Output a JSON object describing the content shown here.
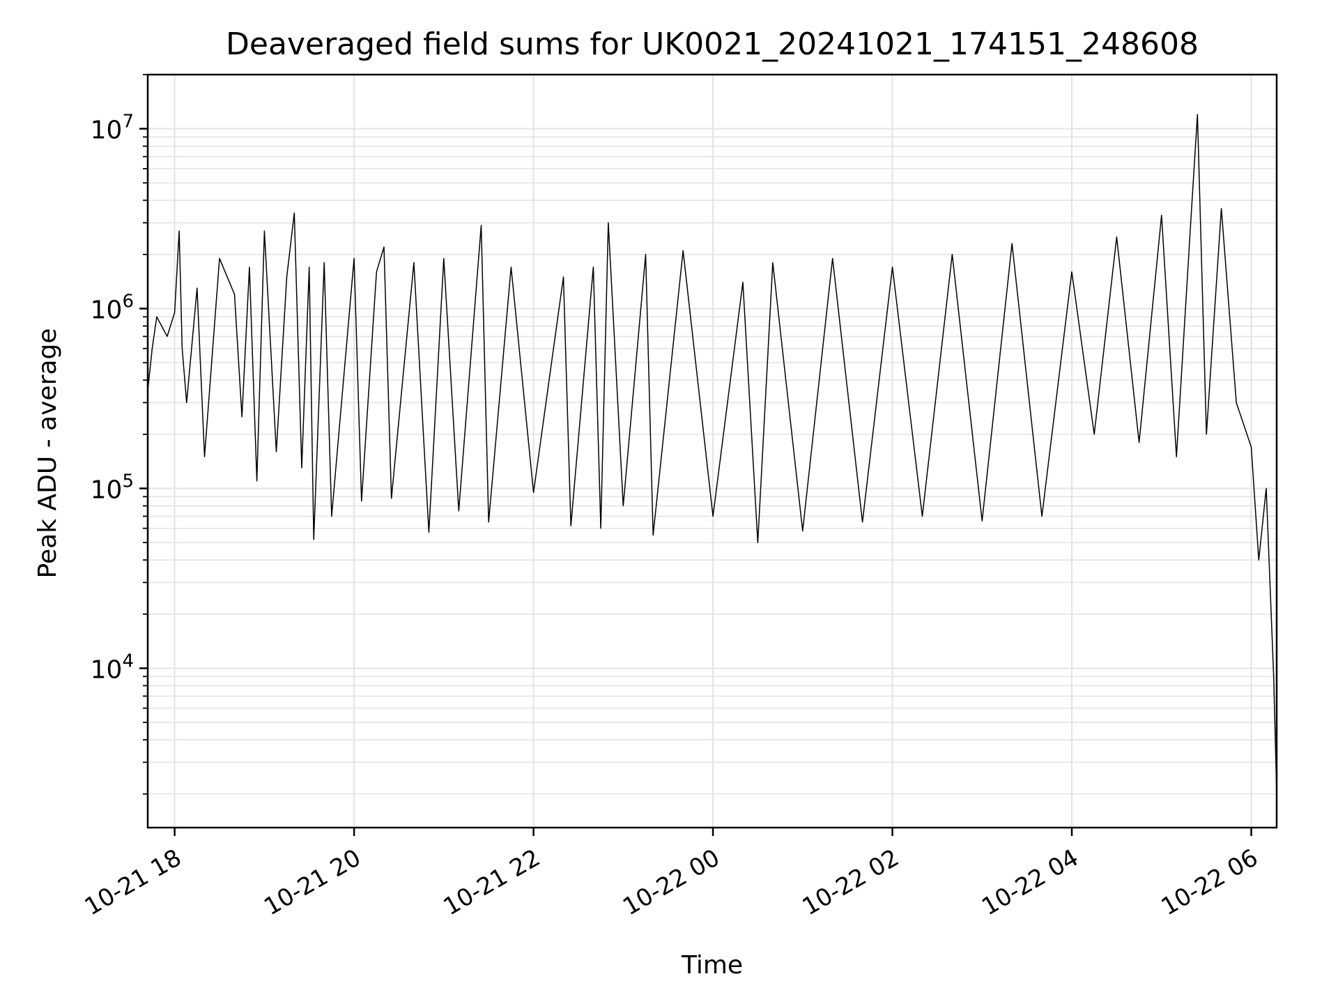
{
  "chart_data": {
    "type": "line",
    "title": "Deaveraged field sums for UK0021_20241021_174151_248608",
    "xlabel": "Time",
    "ylabel": "Peak ADU - average",
    "x_range": [
      "2024-10-21 17:42",
      "2024-10-22 06:17"
    ],
    "y_scale": "log",
    "y_range": [
      1300,
      20000000
    ],
    "x_ticks": [
      {
        "t": "2024-10-21 18:00",
        "label": "10-21 18"
      },
      {
        "t": "2024-10-21 20:00",
        "label": "10-21 20"
      },
      {
        "t": "2024-10-21 22:00",
        "label": "10-21 22"
      },
      {
        "t": "2024-10-22 00:00",
        "label": "10-22 00"
      },
      {
        "t": "2024-10-22 02:00",
        "label": "10-22 02"
      },
      {
        "t": "2024-10-22 04:00",
        "label": "10-22 04"
      },
      {
        "t": "2024-10-22 06:00",
        "label": "10-22 06"
      }
    ],
    "y_ticks": [
      {
        "value": 10000,
        "base": "10",
        "exp": "4"
      },
      {
        "value": 100000,
        "base": "10",
        "exp": "5"
      },
      {
        "value": 1000000,
        "base": "10",
        "exp": "6"
      },
      {
        "value": 10000000,
        "base": "10",
        "exp": "7"
      }
    ],
    "grid": true,
    "grid_color": "#e3e3e3",
    "line_color": "#000000",
    "series": [
      {
        "points": [
          [
            "2024-10-21 17:42",
            350000
          ],
          [
            "2024-10-21 17:45",
            600000
          ],
          [
            "2024-10-21 17:48",
            900000
          ],
          [
            "2024-10-21 17:55",
            700000
          ],
          [
            "2024-10-21 18:00",
            950000
          ],
          [
            "2024-10-21 18:03",
            2700000
          ],
          [
            "2024-10-21 18:05",
            600000
          ],
          [
            "2024-10-21 18:08",
            300000
          ],
          [
            "2024-10-21 18:15",
            1300000
          ],
          [
            "2024-10-21 18:20",
            150000
          ],
          [
            "2024-10-21 18:30",
            1900000
          ],
          [
            "2024-10-21 18:40",
            1200000
          ],
          [
            "2024-10-21 18:45",
            250000
          ],
          [
            "2024-10-21 18:50",
            1700000
          ],
          [
            "2024-10-21 18:55",
            110000
          ],
          [
            "2024-10-21 19:00",
            2700000
          ],
          [
            "2024-10-21 19:08",
            160000
          ],
          [
            "2024-10-21 19:15",
            1500000
          ],
          [
            "2024-10-21 19:20",
            3400000
          ],
          [
            "2024-10-21 19:25",
            130000
          ],
          [
            "2024-10-21 19:30",
            1700000
          ],
          [
            "2024-10-21 19:33",
            52000
          ],
          [
            "2024-10-21 19:40",
            1800000
          ],
          [
            "2024-10-21 19:45",
            70000
          ],
          [
            "2024-10-21 20:00",
            1900000
          ],
          [
            "2024-10-21 20:05",
            85000
          ],
          [
            "2024-10-21 20:15",
            1600000
          ],
          [
            "2024-10-21 20:20",
            2200000
          ],
          [
            "2024-10-21 20:25",
            88000
          ],
          [
            "2024-10-21 20:40",
            1800000
          ],
          [
            "2024-10-21 20:50",
            57000
          ],
          [
            "2024-10-21 21:00",
            1900000
          ],
          [
            "2024-10-21 21:10",
            75000
          ],
          [
            "2024-10-21 21:25",
            2900000
          ],
          [
            "2024-10-21 21:30",
            65000
          ],
          [
            "2024-10-21 21:45",
            1700000
          ],
          [
            "2024-10-21 22:00",
            95000
          ],
          [
            "2024-10-21 22:20",
            1500000
          ],
          [
            "2024-10-21 22:25",
            62000
          ],
          [
            "2024-10-21 22:40",
            1700000
          ],
          [
            "2024-10-21 22:45",
            60000
          ],
          [
            "2024-10-21 22:50",
            3000000
          ],
          [
            "2024-10-21 23:00",
            80000
          ],
          [
            "2024-10-21 23:15",
            2000000
          ],
          [
            "2024-10-21 23:20",
            55000
          ],
          [
            "2024-10-21 23:40",
            2100000
          ],
          [
            "2024-10-22 00:00",
            70000
          ],
          [
            "2024-10-22 00:20",
            1400000
          ],
          [
            "2024-10-22 00:30",
            50000
          ],
          [
            "2024-10-22 00:40",
            1800000
          ],
          [
            "2024-10-22 01:00",
            58000
          ],
          [
            "2024-10-22 01:20",
            1900000
          ],
          [
            "2024-10-22 01:40",
            65000
          ],
          [
            "2024-10-22 02:00",
            1700000
          ],
          [
            "2024-10-22 02:20",
            70000
          ],
          [
            "2024-10-22 02:40",
            2000000
          ],
          [
            "2024-10-22 03:00",
            66000
          ],
          [
            "2024-10-22 03:20",
            2300000
          ],
          [
            "2024-10-22 03:40",
            70000
          ],
          [
            "2024-10-22 04:00",
            1600000
          ],
          [
            "2024-10-22 04:15",
            200000
          ],
          [
            "2024-10-22 04:30",
            2500000
          ],
          [
            "2024-10-22 04:45",
            180000
          ],
          [
            "2024-10-22 05:00",
            3300000
          ],
          [
            "2024-10-22 05:10",
            150000
          ],
          [
            "2024-10-22 05:20",
            3500000
          ],
          [
            "2024-10-22 05:24",
            12000000
          ],
          [
            "2024-10-22 05:30",
            200000
          ],
          [
            "2024-10-22 05:40",
            3600000
          ],
          [
            "2024-10-22 05:50",
            300000
          ],
          [
            "2024-10-22 06:00",
            170000
          ],
          [
            "2024-10-22 06:05",
            40000
          ],
          [
            "2024-10-22 06:10",
            100000
          ],
          [
            "2024-10-22 06:15",
            9000
          ],
          [
            "2024-10-22 06:17",
            2000
          ]
        ]
      }
    ]
  }
}
